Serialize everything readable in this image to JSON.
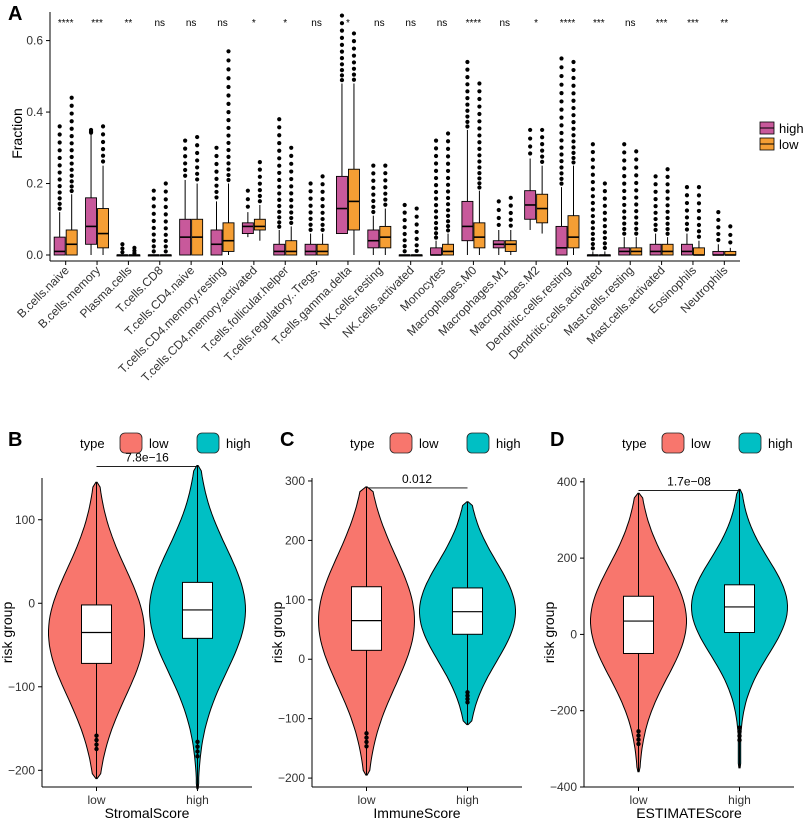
{
  "colors": {
    "high_box": "#C8599B",
    "low_box": "#F59E34",
    "low_violin": "#F8766D",
    "high_violin": "#00BFC4"
  },
  "chart_data": [
    {
      "panel": "A",
      "type": "box",
      "ylabel": "Fraction",
      "ylim": [
        0,
        0.68
      ],
      "yticks": [
        0.0,
        0.2,
        0.4,
        0.6
      ],
      "legend": {
        "position": "right",
        "entries": [
          "high",
          "low"
        ]
      },
      "categories": [
        "B.cells.naive",
        "B.cells.memory",
        "Plasma.cells",
        "T.cells.CD8",
        "T.cells.CD4.naive",
        "T.cells.CD4.memory.resting",
        "T.cells.CD4.memory.activated",
        "T.cells.follicular.helper",
        "T.cells.regulatory..Tregs.",
        "T.cells.gamma.delta",
        "NK.cells.resting",
        "NK.cells.activated",
        "Monocytes",
        "Macrophages.M0",
        "Macrophages.M1",
        "Macrophages.M2",
        "Dendritic.cells.resting",
        "Dendritic.cells.activated",
        "Mast.cells.resting",
        "Mast.cells.activated",
        "Eosinophils",
        "Neutrophils"
      ],
      "significance": [
        "****",
        "***",
        "**",
        "ns",
        "ns",
        "ns",
        "*",
        "*",
        "ns",
        "*",
        "ns",
        "ns",
        "ns",
        "****",
        "ns",
        "*",
        "****",
        "***",
        "ns",
        "***",
        "***",
        "**"
      ],
      "series": [
        {
          "name": "high",
          "boxes": [
            [
              0,
              0,
              0.01,
              0.05,
              0.12,
              0.36
            ],
            [
              0,
              0.03,
              0.08,
              0.16,
              0.34,
              0.35
            ],
            [
              0,
              0,
              0,
              0,
              0,
              0.03
            ],
            [
              0,
              0,
              0,
              0,
              0,
              0.18
            ],
            [
              0,
              0,
              0.05,
              0.1,
              0.21,
              0.32
            ],
            [
              0,
              0,
              0.03,
              0.07,
              0.15,
              0.3
            ],
            [
              0.05,
              0.06,
              0.08,
              0.09,
              0.12,
              0.18
            ],
            [
              0,
              0,
              0.01,
              0.03,
              0.07,
              0.38
            ],
            [
              0,
              0,
              0.01,
              0.03,
              0.06,
              0.2
            ],
            [
              0.06,
              0.06,
              0.13,
              0.22,
              0.48,
              0.67
            ],
            [
              0,
              0.02,
              0.04,
              0.07,
              0.11,
              0.25
            ],
            [
              0,
              0,
              0,
              0,
              0,
              0.14
            ],
            [
              0,
              0,
              0,
              0.02,
              0.04,
              0.32
            ],
            [
              0,
              0.04,
              0.08,
              0.15,
              0.35,
              0.54
            ],
            [
              0,
              0.02,
              0.03,
              0.04,
              0.07,
              0.15
            ],
            [
              0.07,
              0.1,
              0.14,
              0.18,
              0.27,
              0.35
            ],
            [
              0,
              0,
              0.02,
              0.08,
              0.19,
              0.55
            ],
            [
              0,
              0,
              0,
              0,
              0.01,
              0.31
            ],
            [
              0,
              0,
              0.01,
              0.02,
              0.05,
              0.31
            ],
            [
              0,
              0,
              0.01,
              0.03,
              0.06,
              0.22
            ],
            [
              0,
              0,
              0.01,
              0.03,
              0.06,
              0.19
            ],
            [
              0,
              0,
              0,
              0.01,
              0.03,
              0.12
            ]
          ]
        },
        {
          "name": "low",
          "boxes": [
            [
              0,
              0,
              0.03,
              0.07,
              0.17,
              0.44
            ],
            [
              0,
              0.02,
              0.06,
              0.13,
              0.25,
              0.36
            ],
            [
              0,
              0,
              0,
              0,
              0,
              0.02
            ],
            [
              0,
              0,
              0,
              0,
              0,
              0.2
            ],
            [
              0,
              0,
              0.05,
              0.1,
              0.2,
              0.33
            ],
            [
              0,
              0.01,
              0.04,
              0.09,
              0.2,
              0.57
            ],
            [
              0.04,
              0.07,
              0.08,
              0.1,
              0.14,
              0.26
            ],
            [
              0,
              0,
              0.01,
              0.04,
              0.08,
              0.3
            ],
            [
              0,
              0,
              0.01,
              0.03,
              0.06,
              0.22
            ],
            [
              0,
              0.07,
              0.15,
              0.24,
              0.48,
              0.62
            ],
            [
              0,
              0.02,
              0.05,
              0.08,
              0.13,
              0.25
            ],
            [
              0,
              0,
              0,
              0,
              0,
              0.13
            ],
            [
              0,
              0,
              0.01,
              0.03,
              0.06,
              0.34
            ],
            [
              0,
              0.02,
              0.05,
              0.09,
              0.18,
              0.48
            ],
            [
              0,
              0.01,
              0.03,
              0.04,
              0.07,
              0.16
            ],
            [
              0.06,
              0.09,
              0.13,
              0.17,
              0.25,
              0.35
            ],
            [
              0,
              0.02,
              0.05,
              0.11,
              0.25,
              0.54
            ],
            [
              0,
              0,
              0,
              0,
              0.01,
              0.2
            ],
            [
              0,
              0,
              0.01,
              0.02,
              0.05,
              0.29
            ],
            [
              0,
              0,
              0.01,
              0.03,
              0.05,
              0.24
            ],
            [
              0,
              0,
              0,
              0.02,
              0.04,
              0.19
            ],
            [
              0,
              0,
              0,
              0.01,
              0.02,
              0.08
            ]
          ]
        }
      ]
    },
    {
      "panel": "B",
      "type": "violin",
      "ylabel": "risk group",
      "xlabel": "StromalScore",
      "categories": [
        "low",
        "high"
      ],
      "ylim": [
        -220,
        150
      ],
      "yticks": [
        -200,
        -100,
        0,
        100
      ],
      "pvalue": "7.8e−16",
      "legend": {
        "title": "type",
        "entries": [
          "low",
          "high"
        ],
        "position": "top"
      },
      "violins": [
        {
          "min": -210,
          "q1": -72,
          "median": -35,
          "q3": -2,
          "max": 145
        },
        {
          "min": -222,
          "q1": -42,
          "median": -8,
          "q3": 25,
          "max": 165
        }
      ]
    },
    {
      "panel": "C",
      "type": "violin",
      "ylabel": "risk group",
      "xlabel": "ImmuneScore",
      "categories": [
        "low",
        "high"
      ],
      "ylim": [
        -215,
        305
      ],
      "yticks": [
        -200,
        -100,
        0,
        100,
        200,
        300
      ],
      "pvalue": "0.012",
      "legend": {
        "title": "type",
        "entries": [
          "low",
          "high"
        ],
        "position": "top"
      },
      "violins": [
        {
          "min": -195,
          "q1": 15,
          "median": 65,
          "q3": 122,
          "max": 290
        },
        {
          "min": -110,
          "q1": 42,
          "median": 80,
          "q3": 120,
          "max": 265
        }
      ]
    },
    {
      "panel": "D",
      "type": "violin",
      "ylabel": "risk group",
      "xlabel": "ESTIMATEScore",
      "categories": [
        "low",
        "high"
      ],
      "ylim": [
        -400,
        410
      ],
      "yticks": [
        -400,
        -200,
        0,
        200,
        400
      ],
      "pvalue": "1.7e−08",
      "legend": {
        "title": "type",
        "entries": [
          "low",
          "high"
        ],
        "position": "top"
      },
      "violins": [
        {
          "min": -360,
          "q1": -50,
          "median": 35,
          "q3": 100,
          "max": 370
        },
        {
          "min": -350,
          "q1": 5,
          "median": 72,
          "q3": 130,
          "max": 380
        }
      ]
    }
  ]
}
